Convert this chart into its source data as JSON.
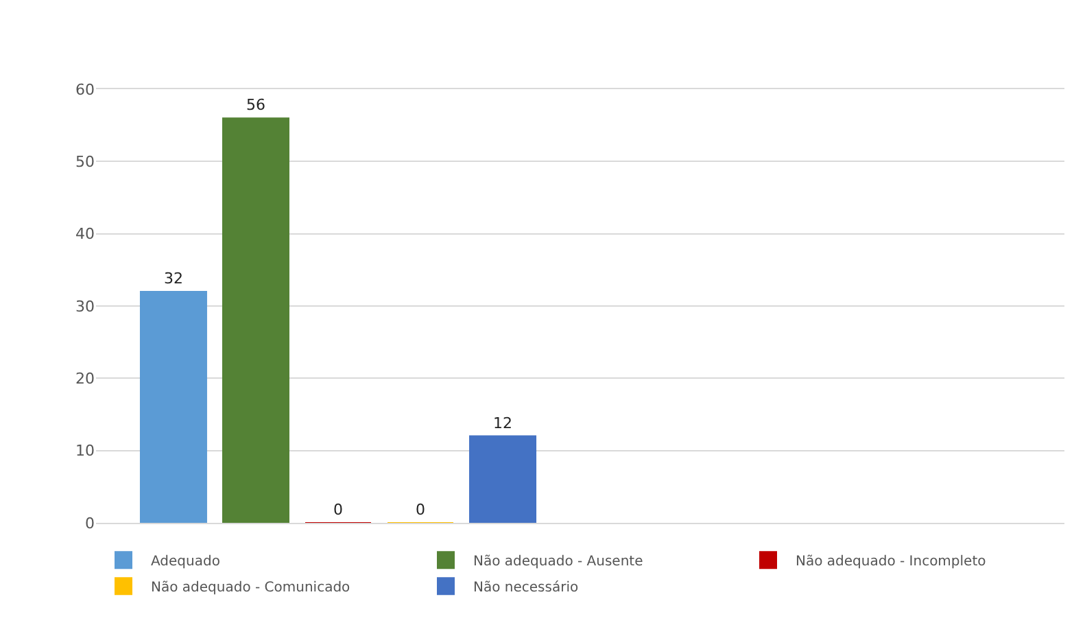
{
  "chart_data": {
    "type": "bar",
    "categories": [
      null,
      null
    ],
    "series": [
      {
        "name": "Adequado",
        "color": "#5b9bd5",
        "values": [
          32,
          null
        ]
      },
      {
        "name": "Não adequado - Ausente",
        "color": "#548235",
        "values": [
          56,
          null
        ]
      },
      {
        "name": "Não adequado - Incompleto",
        "color": "#c00000",
        "values": [
          0,
          null
        ]
      },
      {
        "name": "Não adequado - Comunicado",
        "color": "#ffc000",
        "values": [
          0,
          null
        ]
      },
      {
        "name": "Não necessário",
        "color": "#4472c4",
        "values": [
          12,
          null
        ]
      }
    ],
    "ylim": [
      0,
      60
    ],
    "yticks": [
      0,
      10,
      20,
      30,
      40,
      50,
      60
    ],
    "grid": "y",
    "legend": "bottom",
    "data_labels": true
  }
}
